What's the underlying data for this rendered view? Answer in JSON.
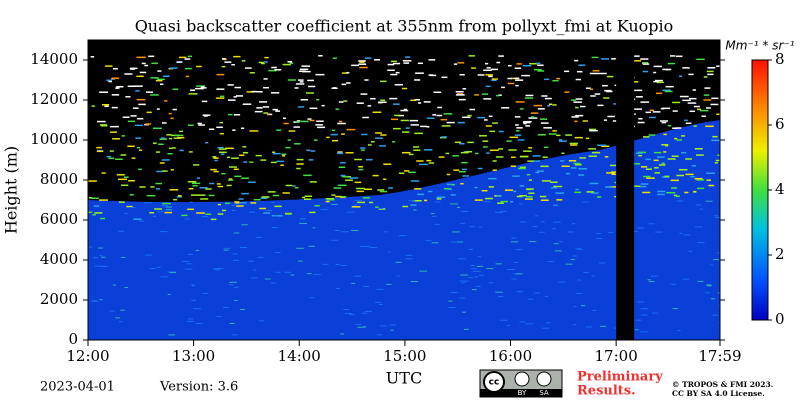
{
  "chart_data": {
    "type": "heatmap",
    "title": "Quasi backscatter coefficient at 355nm from pollyxt_fmi at Kuopio",
    "x_label": "UTC",
    "y_label": "Height (m)",
    "xlim": [
      12.0,
      17.9833
    ],
    "xticks": [
      {
        "value": 12.0,
        "label": "12:00"
      },
      {
        "value": 13.0,
        "label": "13:00"
      },
      {
        "value": 14.0,
        "label": "14:00"
      },
      {
        "value": 15.0,
        "label": "15:00"
      },
      {
        "value": 16.0,
        "label": "16:00"
      },
      {
        "value": 17.0,
        "label": "17:00"
      },
      {
        "value": 17.9833,
        "label": "17:59"
      }
    ],
    "ylim": [
      0,
      15000
    ],
    "yticks": [
      0,
      2000,
      4000,
      6000,
      8000,
      10000,
      12000,
      14000
    ],
    "colorbar_label": "Mm⁻¹ * sr⁻¹",
    "zlim": [
      0,
      8
    ],
    "zticks": [
      0,
      2,
      4,
      6,
      8
    ]
  },
  "footer": {
    "date": "2023-04-01",
    "version": "Version: 3.6",
    "badge": [
      "BY",
      "SA"
    ],
    "notice": [
      "Preliminary",
      "Results."
    ],
    "copyright": [
      "© TROPOS & FMI 2023.",
      "CC BY SA 4.0 License."
    ]
  }
}
